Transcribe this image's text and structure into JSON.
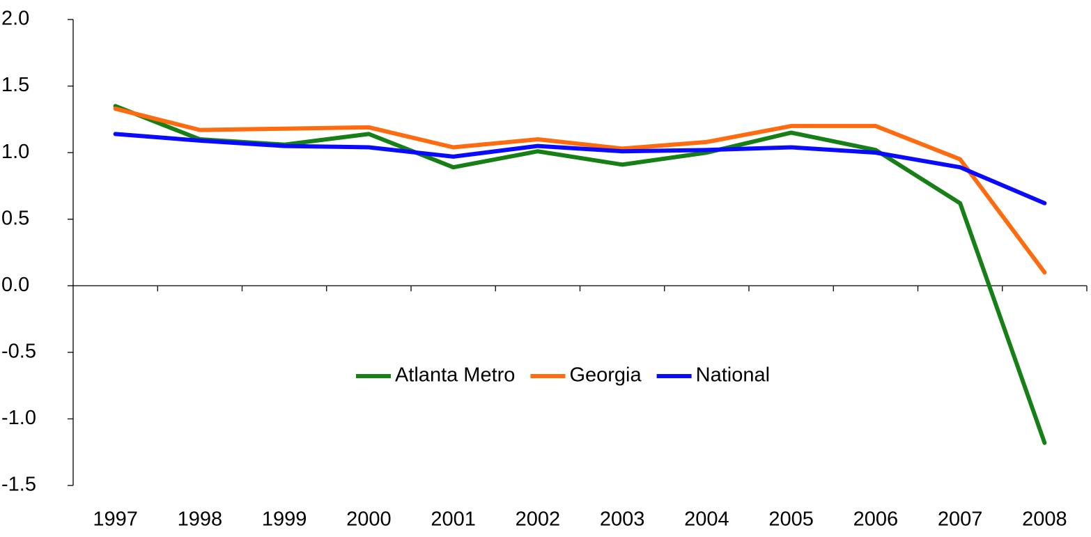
{
  "chart_data": {
    "type": "line",
    "categories": [
      "1997",
      "1998",
      "1999",
      "2000",
      "2001",
      "2002",
      "2003",
      "2004",
      "2005",
      "2006",
      "2007",
      "2008"
    ],
    "series": [
      {
        "name": "Atlanta Metro",
        "color": "#168016",
        "values": [
          1.35,
          1.1,
          1.06,
          1.14,
          0.89,
          1.01,
          0.91,
          1.0,
          1.15,
          1.02,
          0.62,
          -1.18
        ]
      },
      {
        "name": "Georgia",
        "color": "#ff6b0e",
        "values": [
          1.33,
          1.17,
          1.18,
          1.19,
          1.04,
          1.1,
          1.03,
          1.08,
          1.2,
          1.2,
          0.95,
          0.1
        ]
      },
      {
        "name": "National",
        "color": "#0a0aff",
        "values": [
          1.14,
          1.09,
          1.05,
          1.04,
          0.97,
          1.05,
          1.01,
          1.02,
          1.04,
          1.0,
          0.89,
          0.62
        ]
      }
    ],
    "ylim": [
      -1.5,
      2.0
    ],
    "yticks": [
      {
        "value": -1.5,
        "label": "-1.5"
      },
      {
        "value": -1.0,
        "label": "-1.0"
      },
      {
        "value": -0.5,
        "label": "-0.5"
      },
      {
        "value": 0,
        "label": "0.0"
      },
      {
        "value": 0.5,
        "label": "0.5"
      },
      {
        "value": 1.0,
        "label": "1.0"
      },
      {
        "value": 1.5,
        "label": "1.5"
      },
      {
        "value": 2.0,
        "label": "2.0"
      }
    ],
    "grid": false,
    "legend": "center"
  }
}
